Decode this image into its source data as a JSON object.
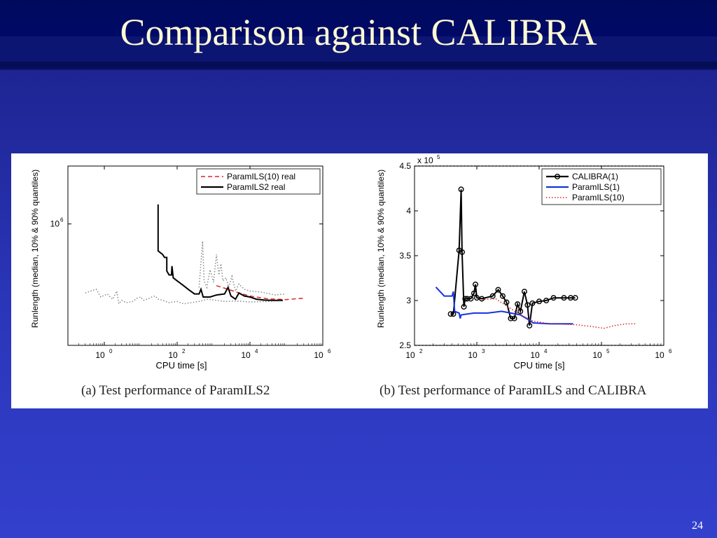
{
  "slide": {
    "title": "Comparison against CALIBRA",
    "page_number": "24"
  },
  "chart_data": [
    {
      "type": "line",
      "caption": "(a)  Test performance of ParamILS2",
      "xlabel": "CPU time [s]",
      "ylabel": "Runlength (median, 10% & 90% quantiles)",
      "xscale": "log",
      "yscale": "log",
      "xlim": [
        0.1,
        1000000
      ],
      "ylim": [
        100000,
        3000000
      ],
      "xticks": [
        {
          "v": 1,
          "base": "10",
          "exp": "0"
        },
        {
          "v": 100,
          "base": "10",
          "exp": "2"
        },
        {
          "v": 10000,
          "base": "10",
          "exp": "4"
        },
        {
          "v": 1000000,
          "base": "10",
          "exp": "6"
        }
      ],
      "yticks": [
        {
          "v": 1000000,
          "base": "10",
          "exp": "6"
        }
      ],
      "legend": {
        "placement": "top-right"
      },
      "series": [
        {
          "name": "ParamILS(10) real",
          "color": "#e0202a",
          "style": "dashed",
          "legend": true,
          "points": [
            [
              1200,
              310000
            ],
            [
              2500,
              290000
            ],
            [
              5000,
              270000
            ],
            [
              10000,
              255000
            ],
            [
              30000,
              242000
            ],
            [
              100000,
              238000
            ],
            [
              300000,
              245000
            ]
          ]
        },
        {
          "name": "ParamILS2 real",
          "color": "#000000",
          "style": "solid",
          "legend": true,
          "points": [
            [
              30,
              1450000
            ],
            [
              30,
              600000
            ],
            [
              40,
              560000
            ],
            [
              45,
              530000
            ],
            [
              52,
              530000
            ],
            [
              52,
              410000
            ],
            [
              60,
              380000
            ],
            [
              70,
              380000
            ],
            [
              72,
              450000
            ],
            [
              78,
              360000
            ],
            [
              100,
              340000
            ],
            [
              150,
              310000
            ],
            [
              200,
              290000
            ],
            [
              300,
              265000
            ],
            [
              400,
              265000
            ],
            [
              450,
              290000
            ],
            [
              520,
              250000
            ],
            [
              800,
              250000
            ],
            [
              1200,
              260000
            ],
            [
              2000,
              265000
            ],
            [
              2500,
              300000
            ],
            [
              3000,
              255000
            ],
            [
              4000,
              240000
            ],
            [
              5000,
              270000
            ],
            [
              7000,
              255000
            ],
            [
              10000,
              250000
            ],
            [
              15000,
              240000
            ],
            [
              25000,
              236000
            ],
            [
              40000,
              235000
            ],
            [
              80000,
              235000
            ]
          ]
        },
        {
          "name": "",
          "color": "#888888",
          "style": "dotted",
          "legend": false,
          "points": [
            [
              0.3,
              270000
            ],
            [
              0.6,
              290000
            ],
            [
              0.8,
              250000
            ],
            [
              1.2,
              265000
            ],
            [
              1.7,
              240000
            ],
            [
              2.2,
              280000
            ],
            [
              2.5,
              220000
            ],
            [
              3,
              235000
            ],
            [
              4,
              225000
            ],
            [
              6,
              230000
            ],
            [
              8,
              245000
            ],
            [
              10,
              250000
            ],
            [
              12,
              235000
            ],
            [
              15,
              240000
            ],
            [
              20,
              250000
            ],
            [
              25,
              255000
            ],
            [
              30,
              240000
            ],
            [
              40,
              235000
            ],
            [
              60,
              225000
            ],
            [
              100,
              230000
            ],
            [
              150,
              220000
            ],
            [
              250,
              225000
            ],
            [
              400,
              230000
            ],
            [
              700,
              240000
            ],
            [
              1200,
              235000
            ],
            [
              2000,
              230000
            ],
            [
              4000,
              232000
            ],
            [
              10000,
              228000
            ],
            [
              30000,
              230000
            ],
            [
              80000,
              232000
            ]
          ]
        },
        {
          "name": "",
          "color": "#888888",
          "style": "dotted",
          "legend": false,
          "points": [
            [
              400,
              300000
            ],
            [
              500,
              720000
            ],
            [
              550,
              340000
            ],
            [
              650,
              300000
            ],
            [
              800,
              420000
            ],
            [
              1000,
              330000
            ],
            [
              1200,
              560000
            ],
            [
              1400,
              380000
            ],
            [
              1600,
              470000
            ],
            [
              1800,
              340000
            ],
            [
              2200,
              360000
            ],
            [
              2600,
              300000
            ],
            [
              3200,
              370000
            ],
            [
              4000,
              280000
            ],
            [
              5000,
              320000
            ],
            [
              7000,
              290000
            ],
            [
              10000,
              280000
            ],
            [
              20000,
              275000
            ],
            [
              50000,
              260000
            ],
            [
              90000,
              265000
            ]
          ]
        }
      ]
    },
    {
      "type": "line",
      "caption": "(b)  Test performance of ParamILS and CALIBRA",
      "xlabel": "CPU time [s]",
      "ylabel": "Runlength (median, 10% & 90% quantiles)",
      "xscale": "log",
      "xlim": [
        100,
        1000000
      ],
      "ylim": [
        2.5,
        4.5
      ],
      "y_multiplier": "x 10",
      "y_multiplier_exp": "5",
      "xticks": [
        {
          "v": 100,
          "base": "10",
          "exp": "2"
        },
        {
          "v": 1000,
          "base": "10",
          "exp": "3"
        },
        {
          "v": 10000,
          "base": "10",
          "exp": "4"
        },
        {
          "v": 100000,
          "base": "10",
          "exp": "5"
        },
        {
          "v": 1000000,
          "base": "10",
          "exp": "6"
        }
      ],
      "yticks": [
        {
          "v": 2.5,
          "label": "2.5"
        },
        {
          "v": 3,
          "label": "3"
        },
        {
          "v": 3.5,
          "label": "3.5"
        },
        {
          "v": 4,
          "label": "4"
        },
        {
          "v": 4.5,
          "label": "4.5"
        }
      ],
      "legend": {
        "placement": "top-right"
      },
      "series": [
        {
          "name": "CALIBRA(1)",
          "color": "#000000",
          "style": "solid",
          "markers": true,
          "legend": true,
          "points": [
            [
              380,
              2.85
            ],
            [
              420,
              2.85
            ],
            [
              520,
              3.56
            ],
            [
              560,
              4.24
            ],
            [
              580,
              3.54
            ],
            [
              620,
              2.93
            ],
            [
              650,
              3.02
            ],
            [
              700,
              3.02
            ],
            [
              800,
              3.02
            ],
            [
              900,
              3.08
            ],
            [
              950,
              3.18
            ],
            [
              1000,
              3.03
            ],
            [
              1200,
              3.02
            ],
            [
              1800,
              3.05
            ],
            [
              2200,
              3.12
            ],
            [
              2600,
              3.05
            ],
            [
              3000,
              2.98
            ],
            [
              3500,
              2.8
            ],
            [
              4000,
              2.8
            ],
            [
              4500,
              2.96
            ],
            [
              5000,
              2.88
            ],
            [
              5800,
              3.1
            ],
            [
              6500,
              2.95
            ],
            [
              7000,
              2.72
            ],
            [
              7800,
              2.97
            ],
            [
              10000,
              2.99
            ],
            [
              13000,
              3.0
            ],
            [
              17000,
              3.03
            ],
            [
              25000,
              3.03
            ],
            [
              32000,
              3.03
            ],
            [
              38000,
              3.03
            ]
          ]
        },
        {
          "name": "ParamILS(1)",
          "color": "#1533e0",
          "style": "solid",
          "markers": false,
          "legend": true,
          "points": [
            [
              220,
              3.15
            ],
            [
              300,
              3.05
            ],
            [
              400,
              3.05
            ],
            [
              420,
              3.1
            ],
            [
              440,
              2.88
            ],
            [
              520,
              2.86
            ],
            [
              540,
              2.8
            ],
            [
              560,
              2.84
            ],
            [
              900,
              2.86
            ],
            [
              1500,
              2.86
            ],
            [
              2500,
              2.88
            ],
            [
              3500,
              2.86
            ],
            [
              5000,
              2.84
            ],
            [
              7000,
              2.78
            ],
            [
              8000,
              2.75
            ],
            [
              15000,
              2.74
            ],
            [
              35000,
              2.74
            ]
          ]
        },
        {
          "name": "ParamILS(10)",
          "color": "#e0202a",
          "style": "dotted",
          "markers": false,
          "legend": true,
          "points": [
            [
              1200,
              3.01
            ],
            [
              2000,
              3.02
            ],
            [
              3000,
              2.94
            ],
            [
              5000,
              2.84
            ],
            [
              8000,
              2.77
            ],
            [
              15000,
              2.74
            ],
            [
              40000,
              2.73
            ],
            [
              70000,
              2.71
            ],
            [
              110000,
              2.69
            ],
            [
              160000,
              2.72
            ],
            [
              250000,
              2.74
            ],
            [
              350000,
              2.74
            ]
          ]
        }
      ]
    }
  ]
}
